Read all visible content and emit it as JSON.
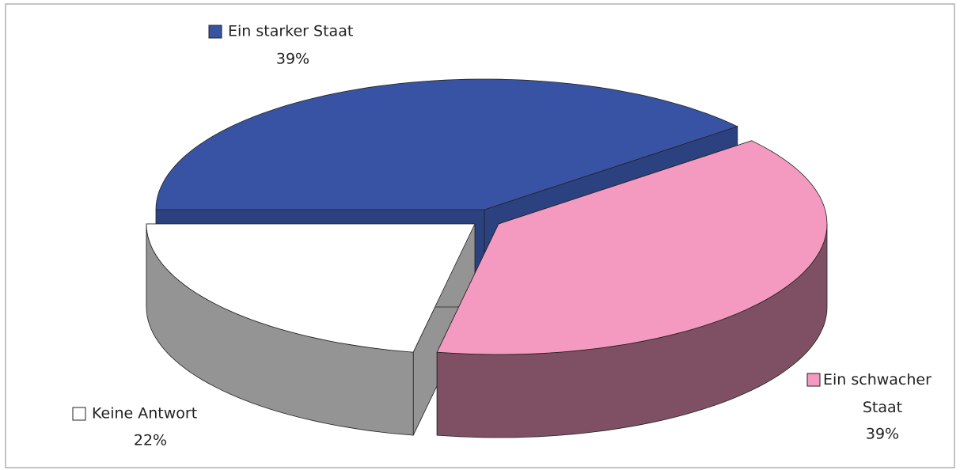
{
  "chart_data": {
    "type": "pie3d",
    "categories": [
      "Ein starker Staat",
      "Ein schwacher Staat",
      "Keine Antwort"
    ],
    "values": [
      39,
      39,
      22
    ],
    "value_labels": [
      "39%",
      "39%",
      "22%"
    ],
    "colors": [
      "#3953a4",
      "#f49ac1",
      "#ffffff"
    ]
  }
}
